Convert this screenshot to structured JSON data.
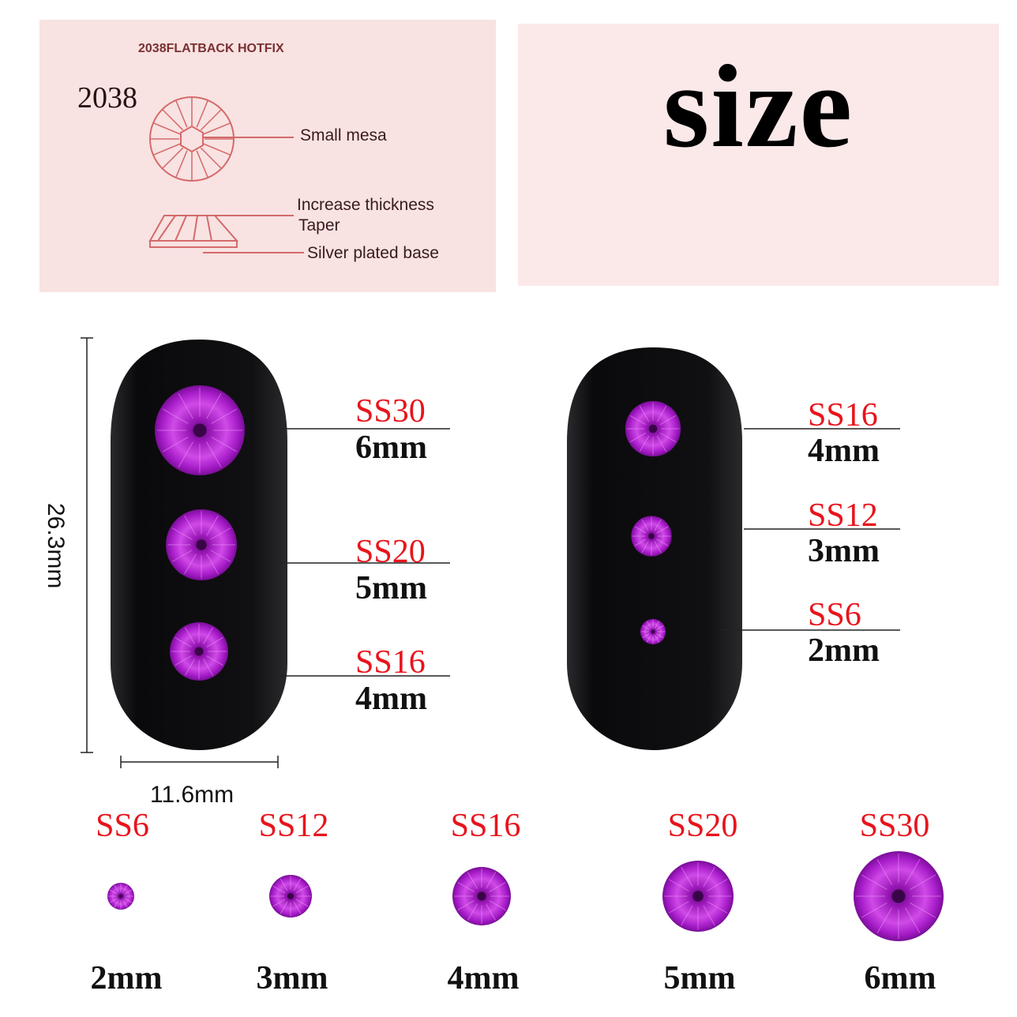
{
  "diagram": {
    "header": "2038FLATBACK HOTFIX",
    "model": "2038",
    "callouts": [
      "Small mesa",
      "Increase thickness",
      "Taper",
      "Silver plated base"
    ]
  },
  "title": "size",
  "dimensions": {
    "height": "26.3mm",
    "width": "11.6mm"
  },
  "left_nail": [
    {
      "ss": "SS30",
      "mm": "6mm"
    },
    {
      "ss": "SS20",
      "mm": "5mm"
    },
    {
      "ss": "SS16",
      "mm": "4mm"
    }
  ],
  "right_nail": [
    {
      "ss": "SS16",
      "mm": "4mm"
    },
    {
      "ss": "SS12",
      "mm": "3mm"
    },
    {
      "ss": "SS6",
      "mm": "2mm"
    }
  ],
  "bottom_row": [
    {
      "ss": "SS6",
      "mm": "2mm"
    },
    {
      "ss": "SS12",
      "mm": "3mm"
    },
    {
      "ss": "SS16",
      "mm": "4mm"
    },
    {
      "ss": "SS20",
      "mm": "5mm"
    },
    {
      "ss": "SS30",
      "mm": "6mm"
    }
  ],
  "colors": {
    "label_red": "#e8141c",
    "gem": "#b422d6",
    "panel": "#f8e2e2",
    "diagram_line": "#d46a6a"
  }
}
